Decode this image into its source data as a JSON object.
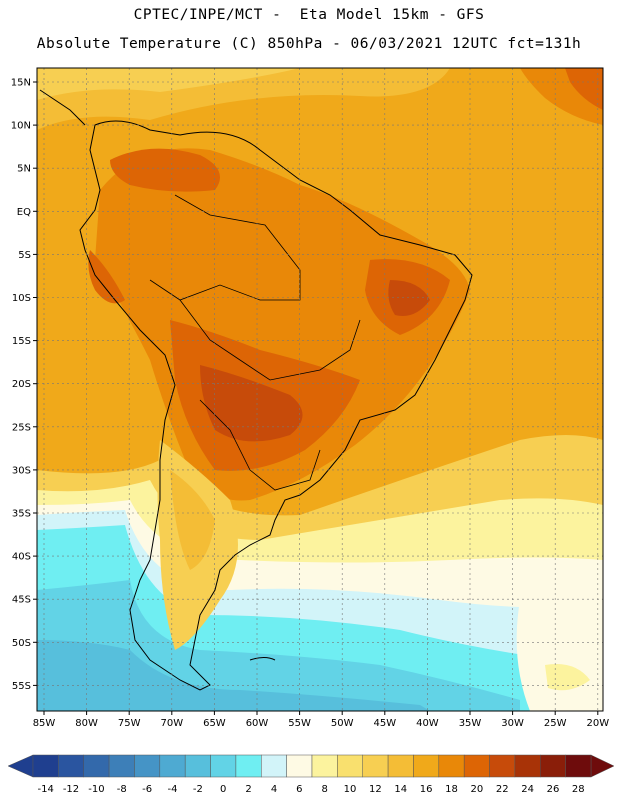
{
  "title_line1": "CPTEC/INPE/MCT -  Eta Model 15km - GFS",
  "title_line2": "Absolute Temperature (C) 850hPa - 06/03/2021 12UTC fct=131h",
  "map": {
    "region": "South America",
    "lat_labels": [
      "15N",
      "10N",
      "5N",
      "EQ",
      "5S",
      "10S",
      "15S",
      "20S",
      "25S",
      "30S",
      "35S",
      "40S",
      "45S",
      "50S",
      "55S"
    ],
    "lon_labels": [
      "85W",
      "80W",
      "75W",
      "70W",
      "65W",
      "60W",
      "55W",
      "50W",
      "45W",
      "40W",
      "35W",
      "30W",
      "25W",
      "20W"
    ],
    "gridlines": true
  },
  "colorbar": {
    "labels": [
      "-14",
      "-12",
      "-10",
      "-8",
      "-6",
      "-4",
      "-2",
      "0",
      "2",
      "4",
      "6",
      "8",
      "10",
      "12",
      "14",
      "16",
      "18",
      "20",
      "22",
      "24",
      "26",
      "28"
    ],
    "colors": [
      "#1f3f8f",
      "#2a55a0",
      "#3369ab",
      "#3d7fb8",
      "#4594c6",
      "#4eaad2",
      "#57bfdc",
      "#62d3e6",
      "#6feef2",
      "#d2f4f9",
      "#fefae4",
      "#fcf39e",
      "#f9e06e",
      "#f7cf52",
      "#f4bd36",
      "#f0a91a",
      "#e98808",
      "#dd6505",
      "#c74b0a",
      "#a83307",
      "#8a1e09",
      "#6e0c0c"
    ]
  }
}
